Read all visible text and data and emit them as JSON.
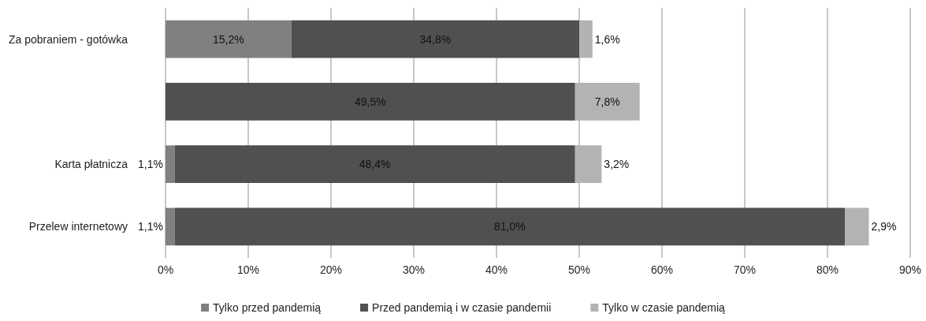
{
  "chart_data": {
    "type": "bar",
    "orientation": "horizontal",
    "stacked": true,
    "categories": [
      "Za pobraniem - gotówka",
      null,
      "Karta płatnicza",
      "Przelew internetowy"
    ],
    "series": [
      {
        "name": "Tylko przed pandemią",
        "color": "#808080",
        "values": [
          15.2,
          null,
          1.1,
          1.1
        ],
        "value_labels": [
          "15,2%",
          null,
          "1,1%",
          "1,1%"
        ]
      },
      {
        "name": "Przed pandemią i w czasie pandemii",
        "color": "#505050",
        "values": [
          34.8,
          49.5,
          48.4,
          81.0
        ],
        "value_labels": [
          "34,8%",
          "49,5%",
          "48,4%",
          "81,0%"
        ]
      },
      {
        "name": "Tylko w czasie pandemią",
        "color": "#b3b3b3",
        "values": [
          1.6,
          7.8,
          3.2,
          2.9
        ],
        "value_labels": [
          "1,6%",
          "7,8%",
          "3,2%",
          "2,9%"
        ]
      }
    ],
    "xlim": [
      0,
      90
    ],
    "xticks": [
      {
        "value": 0,
        "label": "0%"
      },
      {
        "value": 10,
        "label": "10%"
      },
      {
        "value": 20,
        "label": "20%"
      },
      {
        "value": 30,
        "label": "30%"
      },
      {
        "value": 40,
        "label": "40%"
      },
      {
        "value": 50,
        "label": "50%"
      },
      {
        "value": 60,
        "label": "60%"
      },
      {
        "value": 70,
        "label": "70%"
      },
      {
        "value": 80,
        "label": "80%"
      },
      {
        "value": 90,
        "label": "90%"
      }
    ],
    "grid": "x",
    "legend": "bottom"
  }
}
